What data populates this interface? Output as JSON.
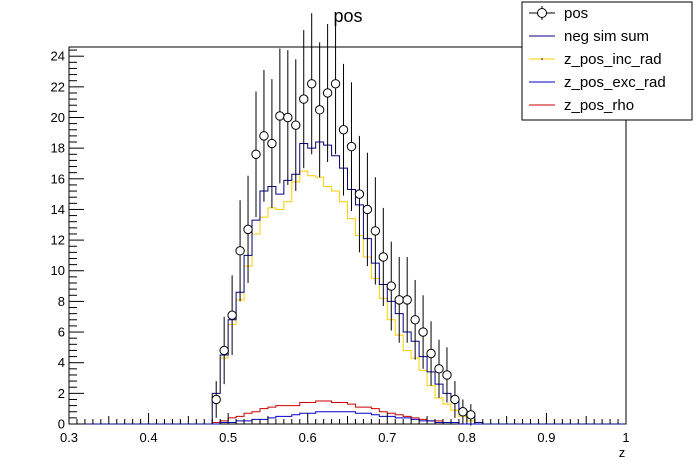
{
  "chart_data": {
    "type": "line",
    "title": "pos",
    "xlabel": "z",
    "ylabel": "",
    "xlim": [
      0.3,
      1.0
    ],
    "ylim": [
      0,
      24.6
    ],
    "xticks": [
      "0.3",
      "0.4",
      "0.5",
      "0.6",
      "0.7",
      "0.8",
      "0.9",
      "1"
    ],
    "yticks": [
      "0",
      "2",
      "4",
      "6",
      "8",
      "10",
      "12",
      "14",
      "16",
      "18",
      "20",
      "22",
      "24"
    ],
    "grid": false,
    "legend_position": "top-right",
    "bin_width": 0.01,
    "series": [
      {
        "name": "pos",
        "kind": "points",
        "color": "#000000",
        "x": [
          0.485,
          0.495,
          0.505,
          0.515,
          0.525,
          0.535,
          0.545,
          0.555,
          0.565,
          0.575,
          0.585,
          0.595,
          0.605,
          0.615,
          0.625,
          0.635,
          0.645,
          0.655,
          0.665,
          0.675,
          0.685,
          0.695,
          0.705,
          0.715,
          0.725,
          0.735,
          0.745,
          0.755,
          0.765,
          0.775,
          0.785,
          0.795,
          0.805
        ],
        "y": [
          1.6,
          4.8,
          7.1,
          11.3,
          12.7,
          17.6,
          18.8,
          18.3,
          20.1,
          20.0,
          19.5,
          21.2,
          22.2,
          20.5,
          21.6,
          22.2,
          19.2,
          18.1,
          15.0,
          14.0,
          12.6,
          10.9,
          9.0,
          8.1,
          8.1,
          6.8,
          6.0,
          4.6,
          3.6,
          3.2,
          1.6,
          0.8,
          0.6
        ],
        "err": [
          1.2,
          2.2,
          2.6,
          3.3,
          3.5,
          4.1,
          4.3,
          4.2,
          4.4,
          4.4,
          4.3,
          4.5,
          4.6,
          4.4,
          4.5,
          4.6,
          4.3,
          4.2,
          3.8,
          3.7,
          3.5,
          3.2,
          2.9,
          2.8,
          2.8,
          2.6,
          2.4,
          2.1,
          1.9,
          1.8,
          1.2,
          0.8,
          0.7
        ]
      },
      {
        "name": "neg sim sum",
        "kind": "step",
        "color": "#000080",
        "x_edges": [
          0.48,
          0.49,
          0.5,
          0.51,
          0.52,
          0.53,
          0.54,
          0.55,
          0.56,
          0.57,
          0.58,
          0.59,
          0.6,
          0.61,
          0.62,
          0.63,
          0.64,
          0.65,
          0.66,
          0.67,
          0.68,
          0.69,
          0.7,
          0.71,
          0.72,
          0.73,
          0.74,
          0.75,
          0.76,
          0.77,
          0.78,
          0.79,
          0.8,
          0.81,
          0.82
        ],
        "values": [
          2.0,
          4.5,
          6.8,
          8.6,
          11.0,
          13.3,
          15.2,
          15.5,
          15.0,
          15.9,
          16.3,
          18.3,
          18.0,
          18.4,
          18.2,
          17.5,
          16.7,
          15.3,
          14.3,
          12.1,
          10.5,
          9.1,
          8.0,
          7.2,
          6.0,
          5.4,
          4.4,
          3.4,
          2.6,
          2.0,
          1.5,
          0.9,
          0.5,
          0.1
        ]
      },
      {
        "name": "z_pos_inc_rad",
        "kind": "step",
        "color": "#ffcc00",
        "x_edges": [
          0.48,
          0.49,
          0.5,
          0.51,
          0.52,
          0.53,
          0.54,
          0.55,
          0.56,
          0.57,
          0.58,
          0.59,
          0.6,
          0.61,
          0.62,
          0.63,
          0.64,
          0.65,
          0.66,
          0.67,
          0.68,
          0.69,
          0.7,
          0.71,
          0.72,
          0.73,
          0.74,
          0.75,
          0.76,
          0.77,
          0.78,
          0.79,
          0.8,
          0.81,
          0.82
        ],
        "values": [
          2.0,
          4.3,
          6.5,
          8.1,
          10.3,
          12.4,
          13.5,
          14.1,
          14.0,
          14.5,
          15.8,
          16.5,
          16.2,
          16.1,
          15.5,
          15.2,
          14.5,
          13.4,
          12.3,
          10.9,
          9.5,
          8.2,
          6.8,
          5.8,
          4.8,
          4.3,
          3.5,
          2.5,
          1.7,
          1.3,
          0.9,
          0.5,
          0.2,
          0.1
        ]
      },
      {
        "name": "z_pos_exc_rad",
        "kind": "step",
        "color": "#0000cc",
        "x_edges": [
          0.48,
          0.49,
          0.5,
          0.51,
          0.52,
          0.53,
          0.54,
          0.55,
          0.56,
          0.57,
          0.58,
          0.59,
          0.6,
          0.61,
          0.62,
          0.63,
          0.64,
          0.65,
          0.66,
          0.67,
          0.68,
          0.69,
          0.7,
          0.71,
          0.72,
          0.73,
          0.74,
          0.75,
          0.76,
          0.77,
          0.78,
          0.79,
          0.8,
          0.81,
          0.82
        ],
        "values": [
          0.0,
          0.1,
          0.1,
          0.2,
          0.2,
          0.3,
          0.3,
          0.4,
          0.5,
          0.5,
          0.6,
          0.7,
          0.7,
          0.8,
          0.8,
          0.8,
          0.8,
          0.8,
          0.7,
          0.7,
          0.6,
          0.5,
          0.5,
          0.4,
          0.4,
          0.3,
          0.2,
          0.2,
          0.1,
          0.1,
          0.1,
          0.0,
          0.0,
          0.0
        ]
      },
      {
        "name": "z_pos_rho",
        "kind": "step",
        "color": "#cc0000",
        "x_edges": [
          0.48,
          0.49,
          0.5,
          0.51,
          0.52,
          0.53,
          0.54,
          0.55,
          0.56,
          0.57,
          0.58,
          0.59,
          0.6,
          0.61,
          0.62,
          0.63,
          0.64,
          0.65,
          0.66,
          0.67,
          0.68,
          0.69,
          0.7,
          0.71,
          0.72,
          0.73,
          0.74,
          0.75,
          0.76,
          0.77,
          0.78,
          0.79,
          0.8,
          0.81,
          0.82
        ],
        "values": [
          0.1,
          0.2,
          0.4,
          0.5,
          0.7,
          0.8,
          1.0,
          1.1,
          1.2,
          1.2,
          1.2,
          1.4,
          1.4,
          1.5,
          1.5,
          1.4,
          1.4,
          1.3,
          1.1,
          1.1,
          1.0,
          0.8,
          0.7,
          0.6,
          0.5,
          0.4,
          0.3,
          0.2,
          0.2,
          0.1,
          0.1,
          0.0,
          0.0,
          0.0
        ]
      }
    ]
  }
}
